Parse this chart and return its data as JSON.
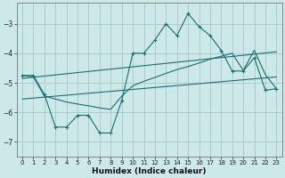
{
  "background_color": "#cce8e8",
  "grid_color": "#aacccc",
  "line_color": "#1a6e6e",
  "x_label": "Humidex (Indice chaleur)",
  "xlim": [
    -0.5,
    23.5
  ],
  "ylim": [
    -7.5,
    -2.3
  ],
  "yticks": [
    -7,
    -6,
    -5,
    -4,
    -3
  ],
  "xticks": [
    0,
    1,
    2,
    3,
    4,
    5,
    6,
    7,
    8,
    9,
    10,
    11,
    12,
    13,
    14,
    15,
    16,
    17,
    18,
    19,
    20,
    21,
    22,
    23
  ],
  "main_line_x": [
    0,
    1,
    2,
    3,
    4,
    5,
    6,
    7,
    8,
    9,
    10,
    11,
    12,
    13,
    14,
    15,
    16,
    17,
    18,
    19,
    20,
    21,
    22,
    23
  ],
  "main_line_y": [
    -4.75,
    -4.75,
    -5.4,
    -6.5,
    -6.5,
    -6.1,
    -6.1,
    -6.7,
    -6.7,
    -5.6,
    -4.0,
    -4.0,
    -3.55,
    -3.0,
    -3.4,
    -2.65,
    -3.1,
    -3.4,
    -3.9,
    -4.6,
    -4.6,
    -4.15,
    -5.25,
    -5.2
  ],
  "upper_line_x": [
    0,
    23
  ],
  "upper_line_y": [
    -4.85,
    -3.95
  ],
  "lower_line_x": [
    0,
    23
  ],
  "lower_line_y": [
    -5.55,
    -4.8
  ],
  "smooth_line_x": [
    0,
    1,
    2,
    3,
    4,
    5,
    6,
    7,
    8,
    9,
    10,
    11,
    12,
    13,
    14,
    15,
    16,
    17,
    18,
    19,
    20,
    21,
    22,
    23
  ],
  "smooth_line_y": [
    -4.75,
    -4.8,
    -5.45,
    -5.55,
    -5.65,
    -5.72,
    -5.78,
    -5.85,
    -5.9,
    -5.45,
    -5.1,
    -4.95,
    -4.82,
    -4.68,
    -4.55,
    -4.45,
    -4.33,
    -4.2,
    -4.1,
    -4.0,
    -4.58,
    -3.9,
    -4.72,
    -5.2
  ]
}
